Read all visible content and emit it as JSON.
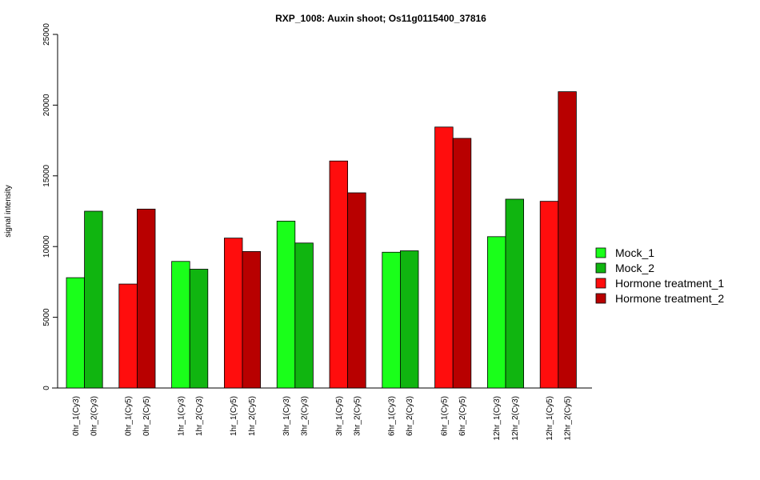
{
  "chart_data": {
    "type": "bar",
    "title": "RXP_1008: Auxin shoot; Os11g0115400_37816",
    "xlabel": "",
    "ylabel": "signal intensity",
    "ylim": [
      0,
      25000
    ],
    "yticks": [
      0,
      5000,
      10000,
      15000,
      20000,
      25000
    ],
    "grid": false,
    "legend_position": "right",
    "colors": {
      "Mock_1": "#1aff1a",
      "Mock_2": "#10b510",
      "Hormone treatment_1": "#ff0d0d",
      "Hormone treatment_2": "#b80000"
    },
    "legend": [
      "Mock_1",
      "Mock_2",
      "Hormone treatment_1",
      "Hormone treatment_2"
    ],
    "bars": [
      {
        "label": "0hr_1(Cy3)",
        "value": 7800,
        "series": "Mock_1"
      },
      {
        "label": "0hr_2(Cy3)",
        "value": 12500,
        "series": "Mock_2"
      },
      {
        "label": "0hr_1(Cy5)",
        "value": 7350,
        "series": "Hormone treatment_1"
      },
      {
        "label": "0hr_2(Cy5)",
        "value": 12650,
        "series": "Hormone treatment_2"
      },
      {
        "label": "1hr_1(Cy3)",
        "value": 8950,
        "series": "Mock_1"
      },
      {
        "label": "1hr_2(Cy3)",
        "value": 8400,
        "series": "Mock_2"
      },
      {
        "label": "1hr_1(Cy5)",
        "value": 10600,
        "series": "Hormone treatment_1"
      },
      {
        "label": "1hr_2(Cy5)",
        "value": 9650,
        "series": "Hormone treatment_2"
      },
      {
        "label": "3hr_1(Cy3)",
        "value": 11800,
        "series": "Mock_1"
      },
      {
        "label": "3hr_2(Cy3)",
        "value": 10250,
        "series": "Mock_2"
      },
      {
        "label": "3hr_1(Cy5)",
        "value": 16050,
        "series": "Hormone treatment_1"
      },
      {
        "label": "3hr_2(Cy5)",
        "value": 13800,
        "series": "Hormone treatment_2"
      },
      {
        "label": "6hr_1(Cy3)",
        "value": 9600,
        "series": "Mock_1"
      },
      {
        "label": "6hr_2(Cy3)",
        "value": 9700,
        "series": "Mock_2"
      },
      {
        "label": "6hr_1(Cy5)",
        "value": 18450,
        "series": "Hormone treatment_1"
      },
      {
        "label": "6hr_2(Cy5)",
        "value": 17650,
        "series": "Hormone treatment_2"
      },
      {
        "label": "12hr_1(Cy3)",
        "value": 10700,
        "series": "Mock_1"
      },
      {
        "label": "12hr_2(Cy3)",
        "value": 13350,
        "series": "Mock_2"
      },
      {
        "label": "12hr_1(Cy5)",
        "value": 13200,
        "series": "Hormone treatment_1"
      },
      {
        "label": "12hr_2(Cy5)",
        "value": 20950,
        "series": "Hormone treatment_2"
      }
    ]
  }
}
